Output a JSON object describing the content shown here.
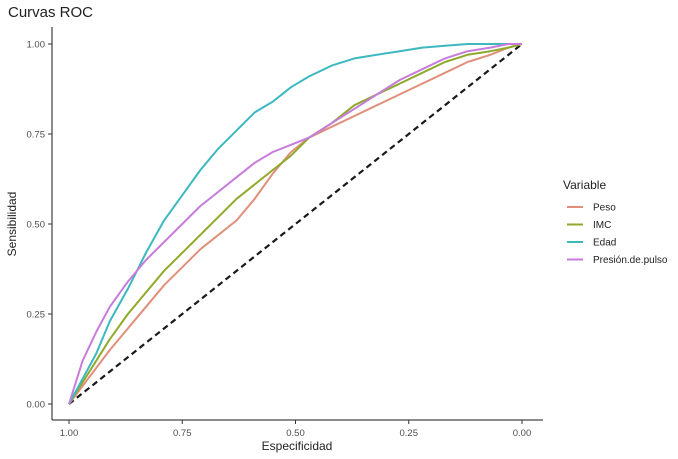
{
  "chart_data": {
    "type": "line",
    "title": "Curvas ROC",
    "xlabel": "Especificidad",
    "ylabel": "Sensibilidad",
    "x_reversed": true,
    "xlim": [
      1.0,
      0.0
    ],
    "ylim": [
      0.0,
      1.0
    ],
    "x_ticks": [
      "1.00",
      "0.75",
      "0.50",
      "0.25",
      "0.00"
    ],
    "y_ticks": [
      "0.00",
      "0.25",
      "0.50",
      "0.75",
      "1.00"
    ],
    "grid": false,
    "legend": {
      "title": "Variable",
      "position": "right"
    },
    "reference_line": {
      "x": [
        1.0,
        0.0
      ],
      "y": [
        0.0,
        1.0
      ],
      "style": "dashed",
      "color": "#1a1a1a"
    },
    "series": [
      {
        "name": "Peso",
        "color": "#E0907A",
        "x": [
          1.0,
          0.97,
          0.94,
          0.91,
          0.87,
          0.83,
          0.79,
          0.75,
          0.71,
          0.67,
          0.63,
          0.59,
          0.55,
          0.51,
          0.47,
          0.42,
          0.37,
          0.32,
          0.27,
          0.22,
          0.17,
          0.12,
          0.07,
          0.03,
          0.0
        ],
        "y": [
          0.0,
          0.05,
          0.1,
          0.15,
          0.21,
          0.27,
          0.33,
          0.38,
          0.43,
          0.47,
          0.51,
          0.57,
          0.64,
          0.7,
          0.74,
          0.77,
          0.8,
          0.83,
          0.86,
          0.89,
          0.92,
          0.95,
          0.97,
          0.99,
          1.0
        ]
      },
      {
        "name": "IMC",
        "color": "#8FAA2B",
        "x": [
          1.0,
          0.97,
          0.94,
          0.91,
          0.87,
          0.83,
          0.79,
          0.75,
          0.71,
          0.67,
          0.63,
          0.59,
          0.55,
          0.51,
          0.47,
          0.42,
          0.37,
          0.32,
          0.27,
          0.22,
          0.17,
          0.12,
          0.07,
          0.03,
          0.0
        ],
        "y": [
          0.0,
          0.06,
          0.12,
          0.18,
          0.25,
          0.31,
          0.37,
          0.42,
          0.47,
          0.52,
          0.57,
          0.61,
          0.65,
          0.69,
          0.74,
          0.78,
          0.83,
          0.86,
          0.89,
          0.92,
          0.95,
          0.97,
          0.98,
          0.99,
          1.0
        ]
      },
      {
        "name": "Edad",
        "color": "#3BB8C0",
        "x": [
          1.0,
          0.97,
          0.94,
          0.91,
          0.87,
          0.83,
          0.79,
          0.75,
          0.71,
          0.67,
          0.63,
          0.59,
          0.55,
          0.51,
          0.47,
          0.42,
          0.37,
          0.32,
          0.27,
          0.22,
          0.17,
          0.12,
          0.07,
          0.03,
          0.0
        ],
        "y": [
          0.0,
          0.07,
          0.14,
          0.23,
          0.32,
          0.42,
          0.51,
          0.58,
          0.65,
          0.71,
          0.76,
          0.81,
          0.84,
          0.88,
          0.91,
          0.94,
          0.96,
          0.97,
          0.98,
          0.99,
          0.995,
          1.0,
          1.0,
          1.0,
          1.0
        ]
      },
      {
        "name": "Presión.de.pulso",
        "color": "#C77CDB",
        "x": [
          1.0,
          0.97,
          0.94,
          0.91,
          0.87,
          0.83,
          0.79,
          0.75,
          0.71,
          0.67,
          0.63,
          0.59,
          0.55,
          0.51,
          0.47,
          0.42,
          0.37,
          0.32,
          0.27,
          0.22,
          0.17,
          0.12,
          0.07,
          0.03,
          0.0
        ],
        "y": [
          0.0,
          0.12,
          0.2,
          0.27,
          0.34,
          0.4,
          0.45,
          0.5,
          0.55,
          0.59,
          0.63,
          0.67,
          0.7,
          0.72,
          0.74,
          0.78,
          0.82,
          0.86,
          0.9,
          0.93,
          0.96,
          0.98,
          0.99,
          1.0,
          1.0
        ]
      }
    ]
  }
}
